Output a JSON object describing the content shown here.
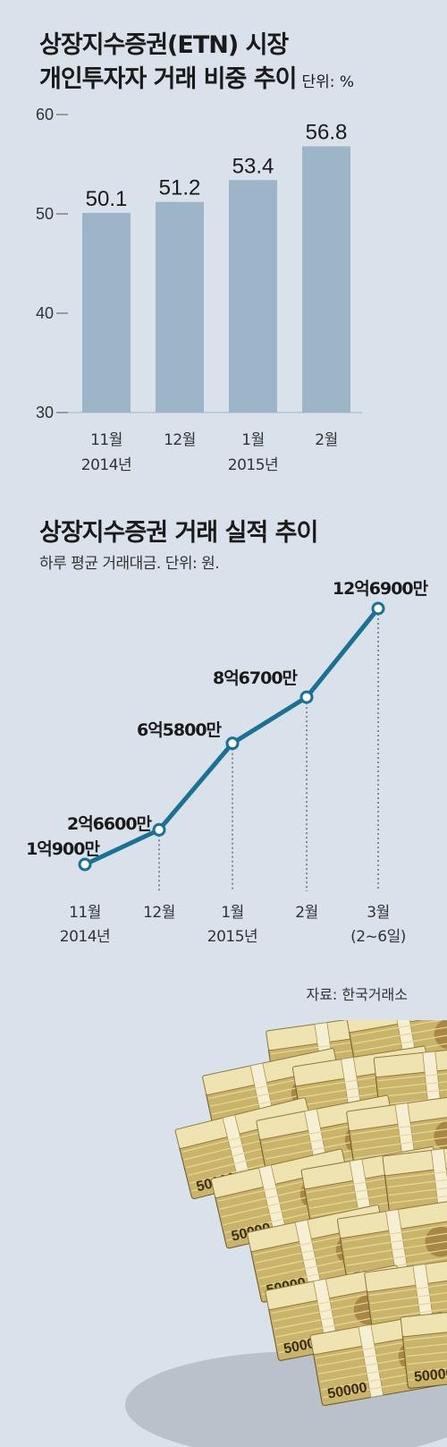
{
  "chart_data": [
    {
      "type": "bar",
      "title_line1": "상장지수증권(ETN) 시장",
      "title_line2": "개인투자자 거래 비중 추이",
      "unit": "단위: %",
      "categories": [
        "11월",
        "12월",
        "1월",
        "2월"
      ],
      "category_sublabels": [
        "2014년",
        "",
        "2015년",
        ""
      ],
      "values": [
        50.1,
        51.2,
        53.4,
        56.8
      ],
      "value_labels": [
        "50.1",
        "51.2",
        "53.4",
        "56.8"
      ],
      "ylim": [
        30,
        60
      ],
      "yticks": [
        30,
        40,
        50,
        60
      ],
      "ytick_labels": [
        "30",
        "40",
        "50",
        "60"
      ],
      "bar_color": "#9cb6c8"
    },
    {
      "type": "line",
      "title": "상장지수증권 거래 실적 추이",
      "subtitle": "하루 평균 거래대금. 단위: 원.",
      "categories": [
        "11월",
        "12월",
        "1월",
        "2월",
        "3월"
      ],
      "category_sublabels": [
        "2014년",
        "",
        "2015년",
        "",
        "(2~6일)"
      ],
      "values": [
        109000000,
        266000000,
        658000000,
        867000000,
        1269000000
      ],
      "value_labels": [
        "1억900만",
        "2억6600만",
        "6억5800만",
        "8억6700만",
        "12억6900만"
      ],
      "line_color": "#1a7196"
    }
  ],
  "source": "자료: 한국거래소",
  "banknote_denomination": "50000"
}
